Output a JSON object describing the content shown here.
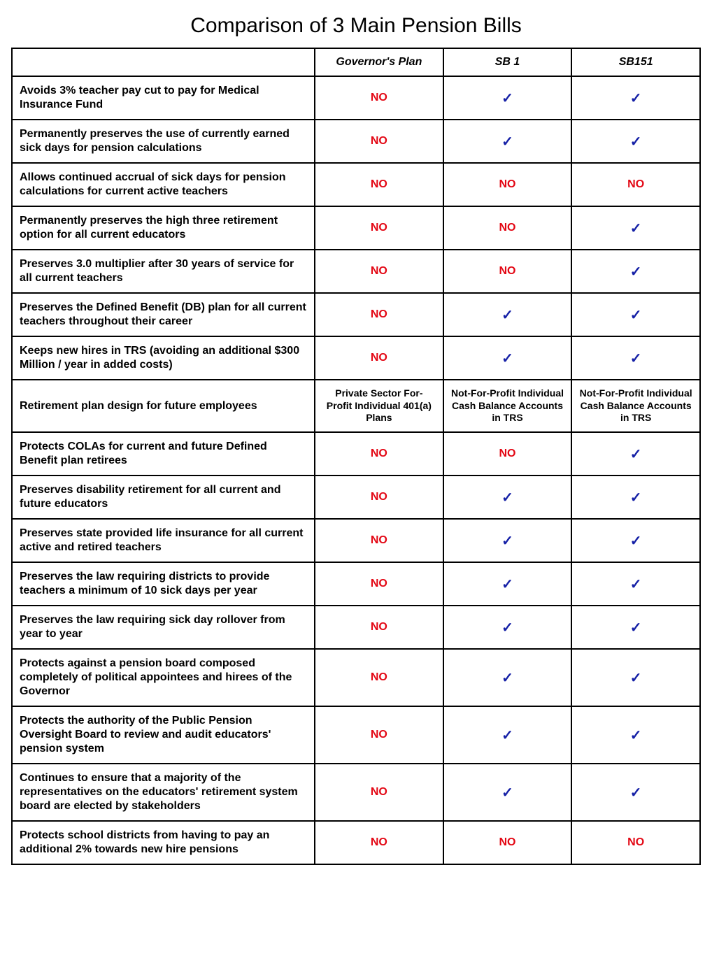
{
  "title": "Comparison of 3 Main Pension Bills",
  "colors": {
    "no": "#e30613",
    "yes": "#1520a6",
    "text": "#000000",
    "border": "#000000",
    "background": "#ffffff"
  },
  "columns": [
    "",
    "Governor's Plan",
    "SB 1",
    "SB151"
  ],
  "glyphs": {
    "yes": "✓",
    "no": "NO"
  },
  "rows": [
    {
      "feature": "Avoids 3% teacher pay cut to pay for Medical Insurance Fund",
      "values": [
        {
          "type": "no"
        },
        {
          "type": "yes"
        },
        {
          "type": "yes"
        }
      ]
    },
    {
      "feature": "Permanently preserves the use of currently earned sick days for pension calculations",
      "values": [
        {
          "type": "no"
        },
        {
          "type": "yes"
        },
        {
          "type": "yes"
        }
      ]
    },
    {
      "feature": "Allows continued accrual of sick days for pension calculations for current active teachers",
      "values": [
        {
          "type": "no"
        },
        {
          "type": "no"
        },
        {
          "type": "no"
        }
      ]
    },
    {
      "feature": "Permanently preserves the high three retirement option for all current educators",
      "values": [
        {
          "type": "no"
        },
        {
          "type": "no"
        },
        {
          "type": "yes"
        }
      ]
    },
    {
      "feature": "Preserves 3.0 multiplier after 30 years of service for all current teachers",
      "values": [
        {
          "type": "no"
        },
        {
          "type": "no"
        },
        {
          "type": "yes"
        }
      ]
    },
    {
      "feature": "Preserves the Defined Benefit (DB) plan for all current teachers throughout their career",
      "values": [
        {
          "type": "no"
        },
        {
          "type": "yes"
        },
        {
          "type": "yes"
        }
      ]
    },
    {
      "feature": "Keeps new hires in TRS (avoiding an additional $300 Million / year in added costs)",
      "values": [
        {
          "type": "no"
        },
        {
          "type": "yes"
        },
        {
          "type": "yes"
        }
      ]
    },
    {
      "feature": "Retirement plan design for future employees",
      "values": [
        {
          "type": "text",
          "text": "Private Sector For-Profit Individual 401(a) Plans"
        },
        {
          "type": "text",
          "text": "Not-For-Profit Individual Cash Balance Accounts in TRS"
        },
        {
          "type": "text",
          "text": "Not-For-Profit Individual Cash Balance Accounts in TRS"
        }
      ]
    },
    {
      "feature": "Protects COLAs for current and future Defined Benefit plan retirees",
      "values": [
        {
          "type": "no"
        },
        {
          "type": "no"
        },
        {
          "type": "yes"
        }
      ]
    },
    {
      "feature": "Preserves disability retirement for all current and future educators",
      "values": [
        {
          "type": "no"
        },
        {
          "type": "yes"
        },
        {
          "type": "yes"
        }
      ]
    },
    {
      "feature": "Preserves state provided life insurance for all current active and retired teachers",
      "values": [
        {
          "type": "no"
        },
        {
          "type": "yes"
        },
        {
          "type": "yes"
        }
      ]
    },
    {
      "feature": "Preserves the law requiring districts to provide teachers a minimum of 10 sick days per year",
      "values": [
        {
          "type": "no"
        },
        {
          "type": "yes"
        },
        {
          "type": "yes"
        }
      ]
    },
    {
      "feature": "Preserves the law requiring sick day rollover from year to year",
      "values": [
        {
          "type": "no"
        },
        {
          "type": "yes"
        },
        {
          "type": "yes"
        }
      ]
    },
    {
      "feature": "Protects against a pension board composed completely of political appointees and hirees of the Governor",
      "values": [
        {
          "type": "no"
        },
        {
          "type": "yes"
        },
        {
          "type": "yes"
        }
      ]
    },
    {
      "feature": "Protects the authority of the Public Pension Oversight Board to review and audit educators' pension system",
      "values": [
        {
          "type": "no"
        },
        {
          "type": "yes"
        },
        {
          "type": "yes"
        }
      ]
    },
    {
      "feature": "Continues to ensure that a majority of the representatives on the educators' retirement system board are elected by stakeholders",
      "values": [
        {
          "type": "no"
        },
        {
          "type": "yes"
        },
        {
          "type": "yes"
        }
      ]
    },
    {
      "feature": "Protects school districts from having to pay an additional 2% towards new hire pensions",
      "values": [
        {
          "type": "no"
        },
        {
          "type": "no"
        },
        {
          "type": "no"
        }
      ]
    }
  ]
}
